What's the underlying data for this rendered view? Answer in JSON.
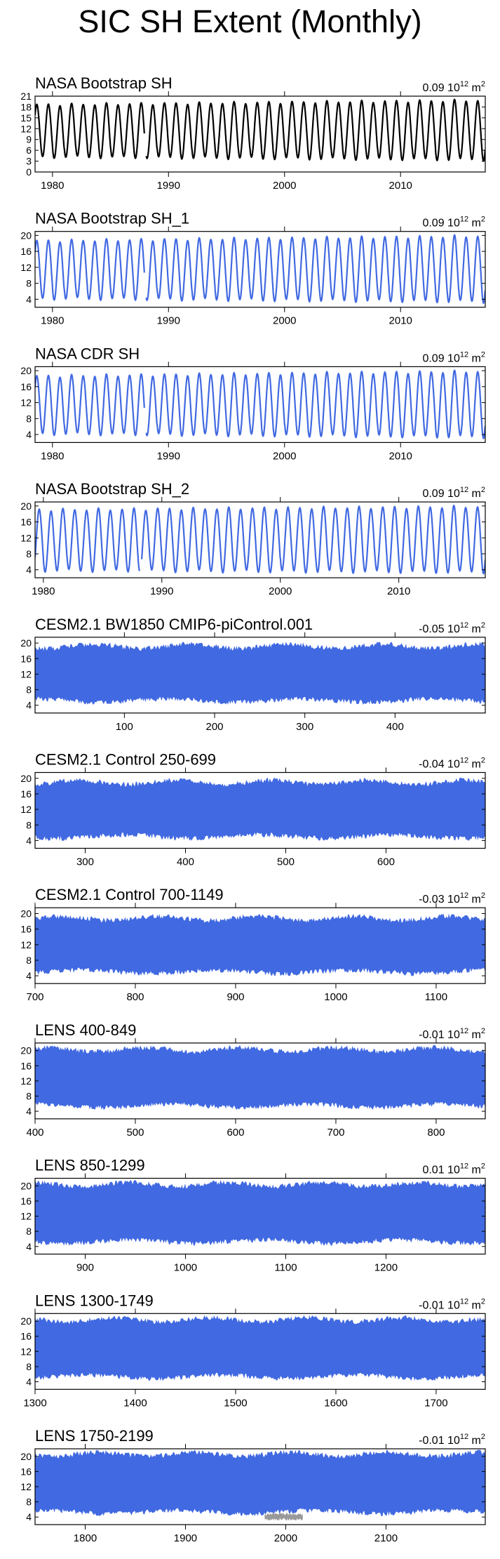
{
  "title": "SIC SH Extent (Monthly)",
  "unit_text": "10",
  "unit_exp": "12",
  "unit_m": " m",
  "unit_m_exp": "2",
  "chart_data": [
    {
      "type": "line",
      "title": "NASA Bootstrap SH",
      "trend": "0.09",
      "color": "#000000",
      "gap": 1988,
      "xlim": [
        1978.5,
        2017.3
      ],
      "ylim": [
        0,
        21
      ],
      "xticks": [
        1980,
        1990,
        2000,
        2010
      ],
      "yticks": [
        0,
        3,
        6,
        9,
        12,
        15,
        18,
        21
      ],
      "ytick_labels": [
        "0",
        "3",
        "6",
        "9",
        "12",
        "15",
        "18",
        "21"
      ],
      "min_start": 4.2,
      "min_end": 3.4,
      "max_start": 18.6,
      "max_end": 19.8
    },
    {
      "type": "line",
      "title": "NASA Bootstrap SH_1",
      "trend": "0.09",
      "color": "#4169e1",
      "gap": 1988,
      "xlim": [
        1978.5,
        2017.3
      ],
      "ylim": [
        2,
        21
      ],
      "xticks": [
        1980,
        1990,
        2000,
        2010
      ],
      "yticks": [
        4,
        8,
        12,
        16,
        20
      ],
      "ytick_labels": [
        "4",
        "8",
        "12",
        "16",
        "20"
      ],
      "min_start": 4.2,
      "min_end": 3.4,
      "max_start": 18.6,
      "max_end": 19.8
    },
    {
      "type": "line",
      "title": "NASA CDR SH",
      "trend": "0.09",
      "color": "#4169e1",
      "gap": 1988,
      "xlim": [
        1978.5,
        2017.3
      ],
      "ylim": [
        2,
        21
      ],
      "xticks": [
        1980,
        1990,
        2000,
        2010
      ],
      "yticks": [
        4,
        8,
        12,
        16,
        20
      ],
      "ytick_labels": [
        "4",
        "8",
        "12",
        "16",
        "20"
      ],
      "min_start": 4.2,
      "min_end": 3.4,
      "max_start": 18.6,
      "max_end": 19.8
    },
    {
      "type": "line",
      "title": "NASA Bootstrap SH_2",
      "trend": "0.09",
      "color": "#4169e1",
      "gap": 1988.2,
      "xlim": [
        1979.3,
        2017.3
      ],
      "ylim": [
        2,
        21
      ],
      "xticks": [
        1980,
        1990,
        2000,
        2010
      ],
      "yticks": [
        4,
        8,
        12,
        16,
        20
      ],
      "ytick_labels": [
        "4",
        "8",
        "12",
        "16",
        "20"
      ],
      "min_start": 3.8,
      "min_end": 3.4,
      "max_start": 19.0,
      "max_end": 19.8
    },
    {
      "type": "area",
      "title": "CESM2.1 BW1850 CMIP6-piControl.001",
      "trend": "-0.05",
      "color": "#4169e1",
      "xlim": [
        1,
        500
      ],
      "ylim": [
        2,
        21.5
      ],
      "xticks": [
        100,
        200,
        300,
        400
      ],
      "yticks": [
        4,
        8,
        12,
        16,
        20
      ],
      "ytick_labels": [
        "4",
        "8",
        "12",
        "16",
        "20"
      ],
      "band": {
        "low": 5.2,
        "high": 19.2
      }
    },
    {
      "type": "area",
      "title": "CESM2.1 Control 250-699",
      "trend": "-0.04",
      "color": "#4169e1",
      "xlim": [
        250,
        699
      ],
      "ylim": [
        2,
        21.5
      ],
      "xticks": [
        300,
        400,
        500,
        600
      ],
      "yticks": [
        4,
        8,
        12,
        16,
        20
      ],
      "ytick_labels": [
        "4",
        "8",
        "12",
        "16",
        "20"
      ],
      "band": {
        "low": 5.0,
        "high": 19.0
      }
    },
    {
      "type": "area",
      "title": "CESM2.1 Control 700-1149",
      "trend": "-0.03",
      "color": "#4169e1",
      "xlim": [
        700,
        1149
      ],
      "ylim": [
        2,
        21.5
      ],
      "xticks": [
        700,
        800,
        900,
        1000,
        1100
      ],
      "yticks": [
        4,
        8,
        12,
        16,
        20
      ],
      "ytick_labels": [
        "4",
        "8",
        "12",
        "16",
        "20"
      ],
      "band": {
        "low": 5.0,
        "high": 18.8
      }
    },
    {
      "type": "area",
      "title": "LENS 400-849",
      "trend": "-0.01",
      "color": "#4169e1",
      "xlim": [
        400,
        849
      ],
      "ylim": [
        2,
        22
      ],
      "xticks": [
        400,
        500,
        600,
        700,
        800
      ],
      "yticks": [
        4,
        8,
        12,
        16,
        20
      ],
      "ytick_labels": [
        "4",
        "8",
        "12",
        "16",
        "20"
      ],
      "band": {
        "low": 5.4,
        "high": 20.3
      }
    },
    {
      "type": "area",
      "title": "LENS 850-1299",
      "trend": "0.01",
      "color": "#4169e1",
      "xlim": [
        850,
        1299
      ],
      "ylim": [
        2,
        22
      ],
      "xticks": [
        900,
        1000,
        1100,
        1200
      ],
      "yticks": [
        4,
        8,
        12,
        16,
        20
      ],
      "ytick_labels": [
        "4",
        "8",
        "12",
        "16",
        "20"
      ],
      "band": {
        "low": 5.3,
        "high": 20.4
      }
    },
    {
      "type": "area",
      "title": "LENS 1300-1749",
      "trend": "-0.01",
      "color": "#4169e1",
      "xlim": [
        1300,
        1749
      ],
      "ylim": [
        2,
        22
      ],
      "xticks": [
        1300,
        1400,
        1500,
        1600,
        1700
      ],
      "yticks": [
        4,
        8,
        12,
        16,
        20
      ],
      "ytick_labels": [
        "4",
        "8",
        "12",
        "16",
        "20"
      ],
      "band": {
        "low": 5.3,
        "high": 20.4
      }
    },
    {
      "type": "area",
      "title": "LENS 1750-2199",
      "trend": "-0.01",
      "color": "#4169e1",
      "xlim": [
        1750,
        2199
      ],
      "ylim": [
        2,
        22
      ],
      "xticks": [
        1800,
        1900,
        2000,
        2100
      ],
      "yticks": [
        4,
        8,
        12,
        16,
        20
      ],
      "ytick_labels": [
        "4",
        "8",
        "12",
        "16",
        "20"
      ],
      "band": {
        "low": 5.3,
        "high": 20.6
      },
      "overlay": {
        "color": "#999999",
        "x": [
          1979,
          2017
        ],
        "low": 3.4,
        "high": 4.8
      }
    }
  ]
}
